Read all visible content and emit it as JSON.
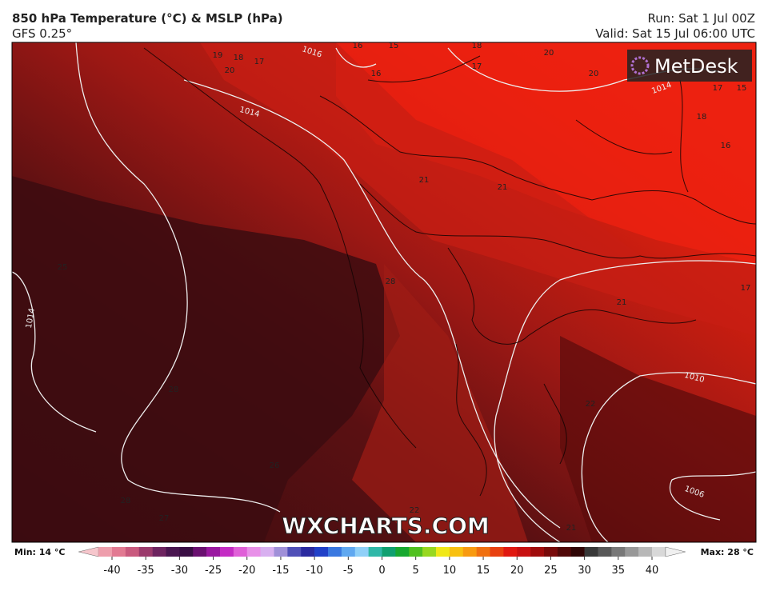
{
  "header": {
    "title": "850 hPa Temperature (°C) & MSLP (hPa)",
    "model": "GFS 0.25°",
    "run": "Run: Sat 1 Jul 00Z",
    "valid": "Valid: Sat 15 Jul 06:00 UTC"
  },
  "logo": "MetDesk",
  "watermark": "WXCHARTS.COM",
  "map": {
    "pressure_labels": [
      "1016",
      "1014",
      "1014",
      "1014",
      "1010",
      "1006"
    ],
    "temperature_labels": [
      "19",
      "18",
      "17",
      "20",
      "16",
      "15",
      "16",
      "18",
      "17",
      "20",
      "20",
      "17",
      "15",
      "18",
      "16",
      "21",
      "21",
      "25",
      "28",
      "28",
      "26",
      "28",
      "27",
      "22",
      "21",
      "17",
      "21",
      "22"
    ]
  },
  "colorbar": {
    "min_label": "Min: 14 °C",
    "max_label": "Max: 28 °C",
    "ticks": [
      -40,
      -35,
      -30,
      -25,
      -20,
      -15,
      -10,
      -5,
      0,
      5,
      10,
      15,
      20,
      25,
      30,
      35,
      40
    ],
    "colors": [
      "#f6c6cc",
      "#ee9eac",
      "#e27a92",
      "#c95a7e",
      "#9b3a6c",
      "#6e2460",
      "#4a1650",
      "#3a0e44",
      "#6a1070",
      "#9a18a0",
      "#c42cc4",
      "#e060d8",
      "#e890e8",
      "#d8b0f0",
      "#a090d8",
      "#5050b8",
      "#2a2aa0",
      "#2040c8",
      "#3a78e0",
      "#60a8f0",
      "#90d0f8",
      "#30b8a8",
      "#10a070",
      "#18a830",
      "#50c020",
      "#98d820",
      "#f0e818",
      "#f8c010",
      "#f89a10",
      "#f07010",
      "#e84010",
      "#e01810",
      "#c81010",
      "#a00c0c",
      "#780a0a",
      "#500808",
      "#300606",
      "#383838",
      "#585858",
      "#787878",
      "#989898",
      "#b8b8b8",
      "#d8d8d8",
      "#f0f0f0"
    ]
  }
}
